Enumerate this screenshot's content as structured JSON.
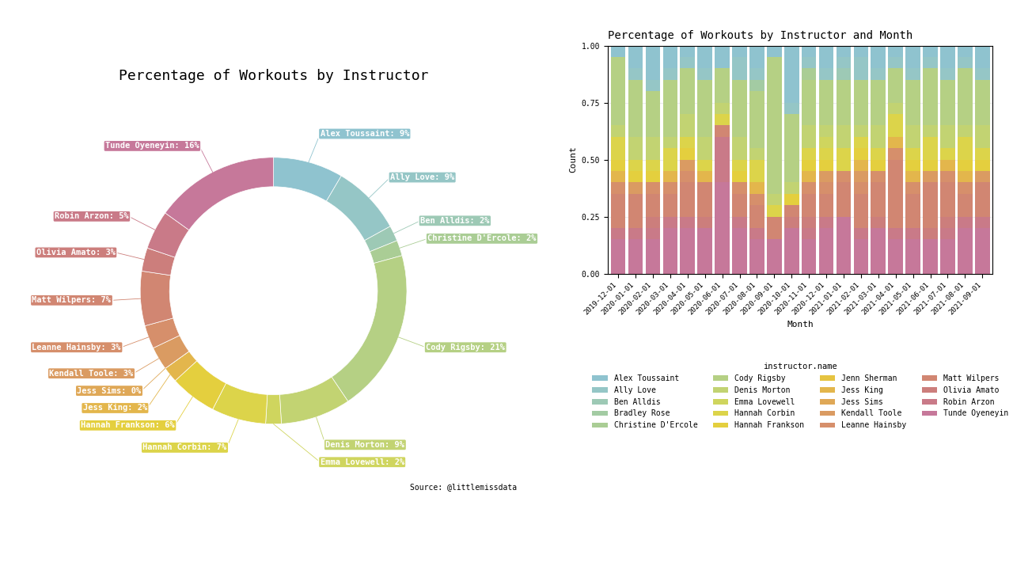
{
  "chart_data": [
    {
      "type": "donut",
      "title": "Percentage of Workouts by Instructor",
      "source": "Source: @littlemissdata",
      "categories": [
        "Alex Toussaint",
        "Ally Love",
        "Ben Alldis",
        "Christine D'Ercole",
        "Cody Rigsby",
        "Denis Morton",
        "Emma Lovewell",
        "Hannah Corbin",
        "Hannah Frankson",
        "Jess King",
        "Jess Sims",
        "Kendall Toole",
        "Leanne Hainsby",
        "Matt Wilpers",
        "Olivia Amato",
        "Robin Arzon",
        "Tunde Oyeneyin"
      ],
      "values": [
        9,
        9,
        2,
        2,
        21,
        9,
        2,
        7,
        6,
        2,
        0,
        3,
        3,
        7,
        3,
        5,
        16
      ],
      "value_labels": [
        "Alex Toussaint: 9%",
        "Ally Love: 9%",
        "Ben Alldis: 2%",
        "Christine D'Ercole: 2%",
        "Cody Rigsby: 21%",
        "Denis Morton: 9%",
        "Emma Lovewell: 2%",
        "Hannah Corbin: 7%",
        "Hannah Frankson: 6%",
        "Jess King: 2%",
        "Jess Sims: 0%",
        "Kendall Toole: 3%",
        "Leanne Hainsby: 3%",
        "Matt Wilpers: 7%",
        "Olivia Amato: 3%",
        "Robin Arzon: 5%",
        "Tunde Oyeneyin: 16%"
      ],
      "data_labels": true,
      "colors": [
        "#8fc3cf",
        "#95c6c6",
        "#9dc9b5",
        "#aacd95",
        "#b5d084",
        "#c2d372",
        "#cfd55e",
        "#dcd44a",
        "#e4cf3e",
        "#e3b64c",
        "#dfa857",
        "#da9b62",
        "#d68f6b",
        "#d18672",
        "#cc7e7c",
        "#c97a88",
        "#c6789a"
      ]
    },
    {
      "type": "bar",
      "stacked": true,
      "title": "Percentage of Workouts by Instructor and Month",
      "x_label": "Month",
      "y_label": "Count",
      "legend_title": "instructor.name",
      "legend": "bottom",
      "grid": true,
      "categories": [
        "2019-12-01",
        "2020-01-01",
        "2020-02-01",
        "2020-03-01",
        "2020-04-01",
        "2020-05-01",
        "2020-06-01",
        "2020-07-01",
        "2020-08-01",
        "2020-09-01",
        "2020-10-01",
        "2020-11-01",
        "2020-12-01",
        "2021-01-01",
        "2021-02-01",
        "2021-03-01",
        "2021-04-01",
        "2021-05-01",
        "2021-06-01",
        "2021-07-01",
        "2021-08-01",
        "2021-09-01"
      ],
      "ylim": [
        0,
        1
      ],
      "yticks": [
        {
          "value": 0,
          "label": "0.00"
        },
        {
          "value": 0.25,
          "label": "0.25"
        },
        {
          "value": 0.5,
          "label": "0.50"
        },
        {
          "value": 0.75,
          "label": "0.75"
        },
        {
          "value": 1,
          "label": "1.00"
        }
      ],
      "series": [
        {
          "name": "Alex Toussaint",
          "color": "#8fc3cf",
          "values": [
            0.05,
            0.1,
            0.15,
            0.1,
            0.05,
            0.1,
            0.1,
            0.05,
            0.1,
            0.05,
            0.25,
            0.05,
            0.1,
            0.05,
            0.05,
            0.1,
            0.05,
            0.1,
            0.05,
            0.1,
            0.05,
            0.1
          ]
        },
        {
          "name": "Ally Love",
          "color": "#95c6c6",
          "values": [
            0,
            0.05,
            0.05,
            0.05,
            0.05,
            0.05,
            0,
            0.1,
            0.05,
            0,
            0.05,
            0.05,
            0.05,
            0.05,
            0.1,
            0.05,
            0.05,
            0.05,
            0.05,
            0.05,
            0.05,
            0.05
          ]
        },
        {
          "name": "Ben Alldis",
          "color": "#9dc9b5",
          "values": [
            0,
            0,
            0,
            0,
            0,
            0,
            0,
            0,
            0,
            0,
            0,
            0,
            0,
            0.05,
            0,
            0,
            0,
            0,
            0,
            0,
            0,
            0
          ]
        },
        {
          "name": "Bradley Rose",
          "color": "#a3cba3",
          "values": [
            0,
            0,
            0,
            0,
            0,
            0,
            0,
            0,
            0.05,
            0,
            0,
            0,
            0,
            0,
            0,
            0,
            0,
            0,
            0,
            0,
            0,
            0
          ]
        },
        {
          "name": "Christine D'Ercole",
          "color": "#aacd95",
          "values": [
            0,
            0,
            0,
            0,
            0,
            0,
            0,
            0,
            0,
            0,
            0,
            0.05,
            0,
            0,
            0,
            0,
            0,
            0,
            0,
            0,
            0,
            0
          ]
        },
        {
          "name": "Cody Rigsby",
          "color": "#b5d084",
          "values": [
            0.3,
            0.25,
            0.2,
            0.25,
            0.2,
            0.25,
            0.15,
            0.25,
            0.25,
            0.6,
            0.3,
            0.2,
            0.2,
            0.2,
            0.2,
            0.2,
            0.15,
            0.2,
            0.25,
            0.2,
            0.25,
            0.2
          ]
        },
        {
          "name": "Denis Morton",
          "color": "#c2d372",
          "values": [
            0.05,
            0.1,
            0.1,
            0.05,
            0.1,
            0.1,
            0.05,
            0.1,
            0.05,
            0.05,
            0.05,
            0.1,
            0.05,
            0.1,
            0.05,
            0.1,
            0.05,
            0.1,
            0.05,
            0.1,
            0.05,
            0.1
          ]
        },
        {
          "name": "Emma Lovewell",
          "color": "#cfd55e",
          "values": [
            0,
            0,
            0,
            0,
            0,
            0,
            0,
            0,
            0,
            0,
            0,
            0,
            0.05,
            0,
            0,
            0,
            0,
            0,
            0,
            0,
            0,
            0
          ]
        },
        {
          "name": "Hannah Corbin",
          "color": "#dcd44a",
          "values": [
            0.1,
            0.05,
            0.05,
            0.1,
            0.05,
            0.05,
            0.05,
            0.05,
            0.1,
            0.05,
            0,
            0.05,
            0.05,
            0.1,
            0.05,
            0.05,
            0.1,
            0.05,
            0.1,
            0.05,
            0.1,
            0.05
          ]
        },
        {
          "name": "Hannah Frankson",
          "color": "#e4cf3e",
          "values": [
            0.05,
            0.05,
            0.05,
            0,
            0.05,
            0,
            0,
            0.05,
            0,
            0,
            0.05,
            0.05,
            0.05,
            0,
            0.05,
            0.05,
            0,
            0.05,
            0.05,
            0,
            0.05,
            0.05
          ]
        },
        {
          "name": "Jenn Sherman",
          "color": "#e6c441",
          "values": [
            0,
            0,
            0,
            0,
            0,
            0,
            0,
            0,
            0,
            0,
            0,
            0,
            0,
            0,
            0,
            0,
            0,
            0,
            0,
            0,
            0,
            0
          ]
        },
        {
          "name": "Jess King",
          "color": "#e3b64c",
          "values": [
            0.05,
            0,
            0,
            0.05,
            0,
            0.05,
            0,
            0,
            0.05,
            0,
            0,
            0.05,
            0,
            0,
            0.05,
            0,
            0.05,
            0.05,
            0,
            0.05,
            0.05,
            0
          ]
        },
        {
          "name": "Jess Sims",
          "color": "#dfa857",
          "values": [
            0,
            0,
            0,
            0,
            0,
            0,
            0,
            0,
            0,
            0,
            0,
            0,
            0,
            0,
            0,
            0,
            0,
            0,
            0,
            0,
            0,
            0
          ]
        },
        {
          "name": "Kendall Toole",
          "color": "#da9b62",
          "values": [
            0,
            0.05,
            0,
            0,
            0.05,
            0,
            0,
            0,
            0,
            0,
            0,
            0,
            0.05,
            0,
            0.05,
            0,
            0,
            0,
            0.05,
            0,
            0,
            0.05
          ]
        },
        {
          "name": "Leanne Hainsby",
          "color": "#d68f6b",
          "values": [
            0.05,
            0,
            0.05,
            0.05,
            0.05,
            0,
            0,
            0.05,
            0.05,
            0,
            0,
            0.05,
            0.05,
            0.05,
            0.05,
            0.05,
            0.05,
            0.05,
            0,
            0.05,
            0.05,
            0
          ]
        },
        {
          "name": "Matt Wilpers",
          "color": "#d18672",
          "values": [
            0.15,
            0.15,
            0.1,
            0.1,
            0.15,
            0.15,
            0.05,
            0.1,
            0.1,
            0.1,
            0.05,
            0.1,
            0.1,
            0.15,
            0.15,
            0.15,
            0.3,
            0.15,
            0.2,
            0.15,
            0.1,
            0.15
          ]
        },
        {
          "name": "Olivia Amato",
          "color": "#cc7e7c",
          "values": [
            0,
            0,
            0.05,
            0,
            0,
            0.05,
            0,
            0,
            0,
            0,
            0.05,
            0.05,
            0,
            0,
            0,
            0.05,
            0,
            0,
            0.05,
            0.05,
            0,
            0
          ]
        },
        {
          "name": "Robin Arzon",
          "color": "#c97a88",
          "values": [
            0.05,
            0.05,
            0.05,
            0.05,
            0.05,
            0,
            0.2,
            0.05,
            0.05,
            0,
            0,
            0.05,
            0.05,
            0,
            0.05,
            0,
            0.05,
            0.05,
            0,
            0.05,
            0.05,
            0.05
          ]
        },
        {
          "name": "Tunde Oyeneyin",
          "color": "#c6789a",
          "values": [
            0.15,
            0.15,
            0.15,
            0.2,
            0.2,
            0.2,
            0.4,
            0.2,
            0.15,
            0.15,
            0.2,
            0.15,
            0.2,
            0.25,
            0.15,
            0.2,
            0.15,
            0.15,
            0.15,
            0.15,
            0.2,
            0.2
          ]
        }
      ]
    }
  ]
}
